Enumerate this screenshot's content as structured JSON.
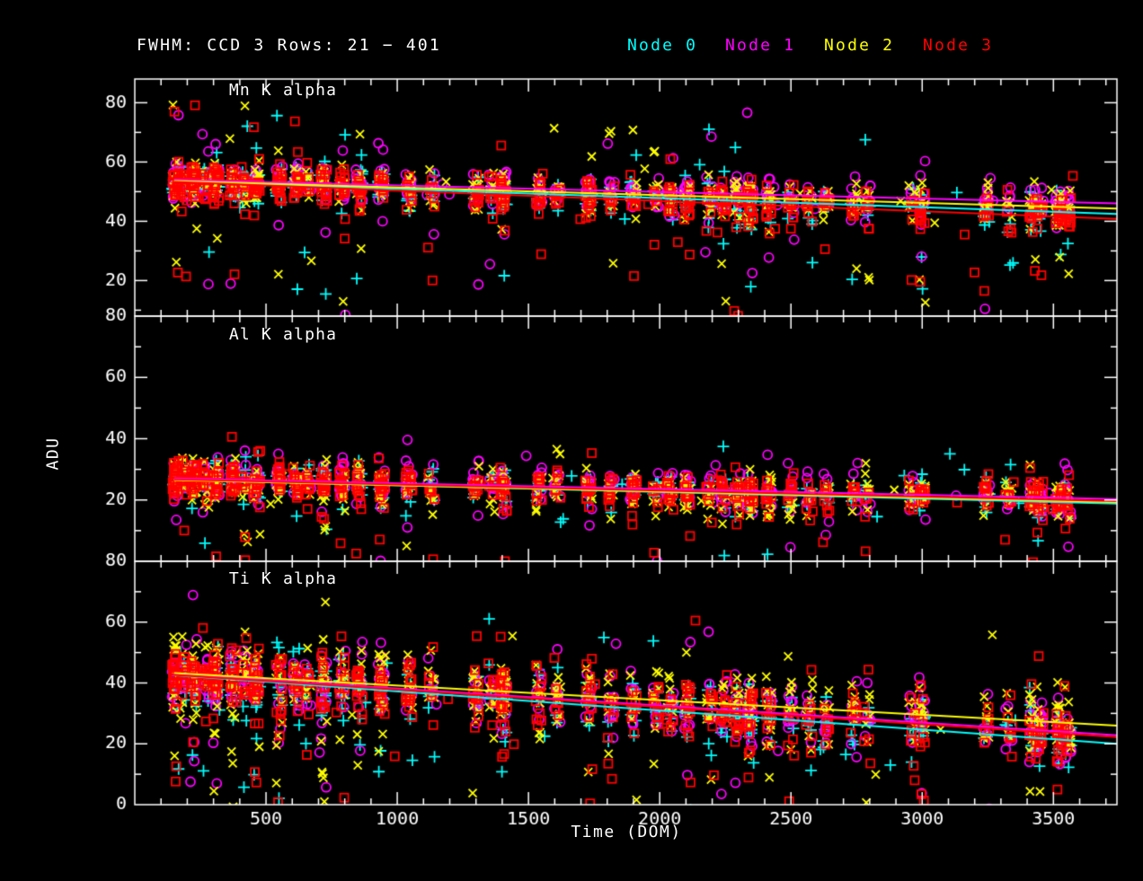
{
  "chart_data": {
    "type": "scatter",
    "title": "FWHM: CCD 3 Rows: 21 − 401",
    "xlabel": "Time (DOM)",
    "ylabel": "ADU",
    "background_color": "#000000",
    "axis_color": "#ffffff",
    "x_range": [
      0,
      3742
    ],
    "xticks": [
      500,
      1000,
      1500,
      2000,
      2500,
      3000,
      3500
    ],
    "x_minor_step": 100,
    "grid": false,
    "legend": {
      "position": "top-right",
      "items": [
        {
          "name": "Node 0",
          "color": "#00ffff",
          "marker": "plus"
        },
        {
          "name": "Node 1",
          "color": "#ff00ff",
          "marker": "circle"
        },
        {
          "name": "Node 2",
          "color": "#ffff00",
          "marker": "x"
        },
        {
          "name": "Node 3",
          "color": "#ff0000",
          "marker": "square"
        }
      ]
    },
    "node_point_density": [
      9,
      10,
      11,
      13
    ],
    "epochs": [
      {
        "t": 155,
        "w": 1.3
      },
      {
        "t": 185,
        "w": 0.8
      },
      {
        "t": 225,
        "w": 1.2
      },
      {
        "t": 270,
        "w": 0.8
      },
      {
        "t": 310,
        "w": 1.3
      },
      {
        "t": 375,
        "w": 1.0
      },
      {
        "t": 420,
        "w": 0.7
      },
      {
        "t": 465,
        "w": 1.2
      },
      {
        "t": 550,
        "w": 1.2
      },
      {
        "t": 615,
        "w": 1.0
      },
      {
        "t": 660,
        "w": 0.6
      },
      {
        "t": 720,
        "w": 1.1
      },
      {
        "t": 790,
        "w": 1.0
      },
      {
        "t": 855,
        "w": 1.1
      },
      {
        "t": 940,
        "w": 1.2
      },
      {
        "t": 1045,
        "w": 0.9
      },
      {
        "t": 1130,
        "w": 0.6
      },
      {
        "t": 1300,
        "w": 0.8
      },
      {
        "t": 1360,
        "w": 0.5
      },
      {
        "t": 1405,
        "w": 1.3
      },
      {
        "t": 1540,
        "w": 0.7
      },
      {
        "t": 1610,
        "w": 0.6
      },
      {
        "t": 1730,
        "w": 0.9
      },
      {
        "t": 1815,
        "w": 0.6
      },
      {
        "t": 1900,
        "w": 0.8
      },
      {
        "t": 1985,
        "w": 0.6
      },
      {
        "t": 2040,
        "w": 0.8
      },
      {
        "t": 2105,
        "w": 0.9
      },
      {
        "t": 2190,
        "w": 0.7
      },
      {
        "t": 2245,
        "w": 0.8
      },
      {
        "t": 2295,
        "w": 0.9
      },
      {
        "t": 2345,
        "w": 1.3
      },
      {
        "t": 2415,
        "w": 0.8
      },
      {
        "t": 2500,
        "w": 0.7
      },
      {
        "t": 2570,
        "w": 0.5
      },
      {
        "t": 2635,
        "w": 0.6
      },
      {
        "t": 2740,
        "w": 0.6
      },
      {
        "t": 2790,
        "w": 0.5
      },
      {
        "t": 2960,
        "w": 0.5
      },
      {
        "t": 3000,
        "w": 0.8
      },
      {
        "t": 3245,
        "w": 0.7
      },
      {
        "t": 3330,
        "w": 0.5
      },
      {
        "t": 3420,
        "w": 0.9
      },
      {
        "t": 3450,
        "w": 0.8
      },
      {
        "t": 3520,
        "w": 1.0
      },
      {
        "t": 3555,
        "w": 0.8
      }
    ],
    "panels": [
      {
        "label": "Mn K alpha",
        "y_range": [
          8,
          88
        ],
        "ytick_labels": [
          80,
          60,
          40,
          20
        ],
        "y_minor_step": 10,
        "sigma": 3.4,
        "low_outlier_prob": 0.05,
        "low_outlier_max": 35,
        "high_outlier_prob": 0.02,
        "high_outlier_max": 22,
        "fit_trends_adu": [
          {
            "node": "Node 0",
            "start": 54.0,
            "end": 42.5
          },
          {
            "node": "Node 1",
            "start": 54.3,
            "end": 46.0
          },
          {
            "node": "Node 2",
            "start": 54.0,
            "end": 44.3
          },
          {
            "node": "Node 3",
            "start": 53.8,
            "end": 40.8
          }
        ]
      },
      {
        "label": "Al K alpha",
        "y_range": [
          0,
          80
        ],
        "ytick_labels": [
          80,
          60,
          40,
          20
        ],
        "y_minor_step": 10,
        "sigma": 3.0,
        "low_outlier_prob": 0.05,
        "low_outlier_max": 22,
        "high_outlier_prob": 0.012,
        "high_outlier_max": 12,
        "fit_trends_adu": [
          {
            "node": "Node 0",
            "start": 27.0,
            "end": 18.8
          },
          {
            "node": "Node 1",
            "start": 27.3,
            "end": 20.3
          },
          {
            "node": "Node 2",
            "start": 26.8,
            "end": 19.3
          },
          {
            "node": "Node 3",
            "start": 27.0,
            "end": 19.6
          }
        ]
      },
      {
        "label": "Ti K alpha",
        "y_range": [
          0,
          80
        ],
        "ytick_labels": [
          80,
          60,
          40,
          20,
          0
        ],
        "y_minor_step": 10,
        "sigma": 5.2,
        "low_outlier_prob": 0.09,
        "low_outlier_max": 34,
        "high_outlier_prob": 0.02,
        "high_outlier_max": 20,
        "fit_trends_adu": [
          {
            "node": "Node 0",
            "start": 43.5,
            "end": 20.0
          },
          {
            "node": "Node 1",
            "start": 43.8,
            "end": 22.8
          },
          {
            "node": "Node 2",
            "start": 44.0,
            "end": 26.0
          },
          {
            "node": "Node 3",
            "start": 43.5,
            "end": 22.2
          }
        ]
      }
    ]
  }
}
